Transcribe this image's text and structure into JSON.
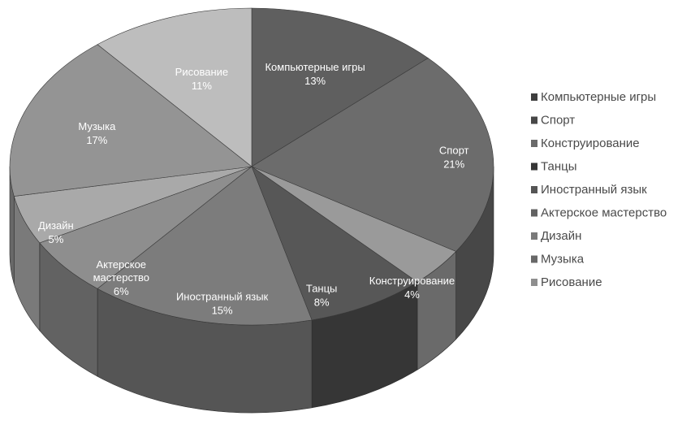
{
  "chart_data": {
    "type": "pie",
    "style": "3d",
    "title": "",
    "legend_position": "right",
    "slices": [
      {
        "label": "Компьютерные игры",
        "value": 13,
        "value_label": "13%",
        "color": "#5f5f5f",
        "side": "#3e3e3e"
      },
      {
        "label": "Спорт",
        "value": 21,
        "value_label": "21%",
        "color": "#6c6c6c",
        "side": "#474747"
      },
      {
        "label": "Конструирование",
        "value": 4,
        "value_label": "4%",
        "color": "#9a9a9a",
        "side": "#6a6a6a"
      },
      {
        "label": "Танцы",
        "value": 8,
        "value_label": "8%",
        "color": "#575757",
        "side": "#363636"
      },
      {
        "label": "Иностранный язык",
        "value": 15,
        "value_label": "15%",
        "color": "#7c7c7c",
        "side": "#555555"
      },
      {
        "label": "Актерское мастерство",
        "value": 6,
        "value_label": "6%",
        "color": "#8e8e8e",
        "side": "#626262"
      },
      {
        "label": "Дизайн",
        "value": 5,
        "value_label": "5%",
        "color": "#a9a9a9",
        "side": "#7a7a7a"
      },
      {
        "label": "Музыка",
        "value": 17,
        "value_label": "17%",
        "color": "#949494",
        "side": "#686868"
      },
      {
        "label": "Рисование",
        "value": 11,
        "value_label": "11%",
        "color": "#bdbdbd",
        "side": "#8e8e8e"
      }
    ]
  }
}
